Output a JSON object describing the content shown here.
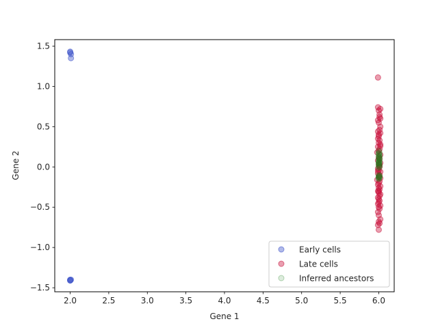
{
  "chart_data": {
    "type": "scatter",
    "title": "",
    "xlabel": "Gene 1",
    "ylabel": "Gene 2",
    "xlim": [
      1.8,
      6.2
    ],
    "ylim": [
      -1.55,
      1.58
    ],
    "xticks": [
      2.0,
      2.5,
      3.0,
      3.5,
      4.0,
      4.5,
      5.0,
      5.5,
      6.0
    ],
    "yticks": [
      -1.5,
      -1.0,
      -0.5,
      0.0,
      0.5,
      1.0,
      1.5
    ],
    "grid": false,
    "legend_position": "bottom-right",
    "series": [
      {
        "name": "Early cells",
        "color": "#3a50c8",
        "alpha": 0.4,
        "x": [
          2.0,
          2.0,
          2.01,
          2.01,
          2.0,
          2.0,
          2.01,
          2.0
        ],
        "y": [
          1.43,
          1.42,
          1.4,
          1.35,
          -1.4,
          -1.41,
          -1.4,
          -1.41
        ]
      },
      {
        "name": "Late cells",
        "color": "#c8103a",
        "alpha": 0.4,
        "x": [
          5.99,
          5.99,
          6.02,
          6.0,
          6.01,
          6.02,
          5.99,
          6.0,
          6.02,
          6.01,
          5.99,
          6.02,
          6.0,
          5.99,
          6.01,
          6.0,
          6.02,
          5.99,
          6.01,
          6.0,
          5.98,
          6.02,
          6.0,
          6.01,
          5.99,
          6.02,
          6.0,
          6.01,
          5.99,
          6.0,
          6.02,
          5.99,
          6.01,
          6.0,
          6.02,
          5.98,
          6.01,
          6.0,
          5.99,
          6.02,
          6.0,
          6.01,
          5.99,
          6.0,
          6.02,
          6.01,
          5.99,
          6.0,
          6.01,
          6.0,
          5.99,
          6.02,
          6.0,
          6.01,
          5.99,
          6.0,
          6.02,
          6.0,
          6.01,
          5.99,
          6.0,
          6.01,
          6.0,
          5.99,
          6.02,
          6.0,
          6.01
        ],
        "y": [
          1.11,
          0.74,
          0.72,
          0.7,
          0.62,
          0.6,
          0.58,
          0.55,
          0.5,
          0.46,
          0.44,
          0.42,
          0.38,
          0.35,
          0.33,
          0.3,
          0.28,
          0.25,
          0.22,
          0.2,
          0.18,
          0.15,
          0.12,
          0.1,
          0.08,
          0.05,
          0.03,
          0.0,
          -0.02,
          -0.04,
          -0.06,
          -0.08,
          -0.1,
          -0.12,
          -0.14,
          -0.16,
          -0.18,
          -0.2,
          -0.22,
          -0.24,
          -0.26,
          -0.28,
          -0.3,
          -0.32,
          -0.34,
          -0.36,
          -0.38,
          -0.4,
          -0.42,
          -0.44,
          -0.46,
          -0.48,
          -0.5,
          -0.52,
          -0.56,
          -0.6,
          -0.65,
          -0.68,
          -0.7,
          -0.72,
          -0.78,
          0.65,
          0.4,
          -0.05,
          0.26,
          -0.3,
          0.02
        ]
      },
      {
        "name": "Inferred ancestors",
        "color": "#1a7d1a",
        "alpha": 0.15,
        "x": [
          6.0,
          6.01,
          6.0,
          6.01,
          6.0,
          6.01,
          6.0,
          6.0,
          6.01,
          6.0,
          6.01,
          6.0,
          6.0,
          6.01,
          6.0,
          6.01,
          6.0,
          6.01,
          6.0,
          6.0,
          6.01,
          6.0,
          6.01,
          6.0,
          6.0,
          6.01,
          6.0,
          6.01,
          6.0,
          6.0
        ],
        "y": [
          0.2,
          0.18,
          0.17,
          0.15,
          0.14,
          0.13,
          0.12,
          0.1,
          0.09,
          0.08,
          0.07,
          0.06,
          0.05,
          0.04,
          0.03,
          0.02,
          0.01,
          0.0,
          -0.01,
          -0.1,
          -0.11,
          -0.12,
          -0.13,
          -0.14,
          -0.15,
          -0.12,
          -0.13,
          0.11,
          0.16,
          0.05
        ]
      }
    ]
  }
}
